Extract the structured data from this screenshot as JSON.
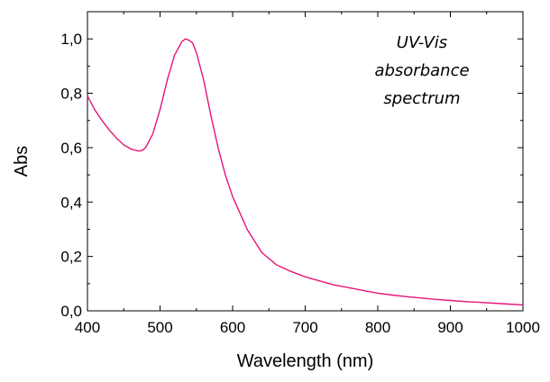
{
  "chart_data": {
    "type": "line",
    "title": "",
    "xlabel": "Wavelength (nm)",
    "ylabel": "Abs",
    "xlim": [
      400,
      1000
    ],
    "ylim": [
      0.0,
      1.1
    ],
    "xticks": [
      400,
      500,
      600,
      700,
      800,
      900,
      1000
    ],
    "xtick_labels": [
      "400",
      "500",
      "600",
      "700",
      "800",
      "900",
      "1000"
    ],
    "yticks": [
      0.0,
      0.2,
      0.4,
      0.6,
      0.8,
      1.0
    ],
    "ytick_labels": [
      "0,0",
      "0,2",
      "0,4",
      "0,6",
      "0,8",
      "1,0"
    ],
    "annotation": [
      "UV-Vis",
      "absorbance",
      "spectrum"
    ],
    "grid": false,
    "legend": "none",
    "series": [
      {
        "color": "#e5157a",
        "x": [
          400,
          410,
          420,
          430,
          440,
          450,
          460,
          470,
          475,
          480,
          490,
          500,
          510,
          520,
          530,
          535,
          540,
          545,
          550,
          560,
          570,
          580,
          590,
          600,
          620,
          640,
          660,
          680,
          700,
          720,
          740,
          760,
          780,
          800,
          820,
          840,
          860,
          880,
          900,
          920,
          940,
          960,
          980,
          1000
        ],
        "y": [
          0.79,
          0.74,
          0.7,
          0.665,
          0.635,
          0.61,
          0.595,
          0.588,
          0.589,
          0.6,
          0.65,
          0.74,
          0.85,
          0.94,
          0.99,
          1.0,
          0.995,
          0.985,
          0.95,
          0.85,
          0.72,
          0.6,
          0.5,
          0.42,
          0.3,
          0.215,
          0.17,
          0.145,
          0.125,
          0.11,
          0.095,
          0.085,
          0.075,
          0.065,
          0.058,
          0.052,
          0.047,
          0.042,
          0.038,
          0.034,
          0.031,
          0.028,
          0.025,
          0.022
        ]
      }
    ]
  }
}
